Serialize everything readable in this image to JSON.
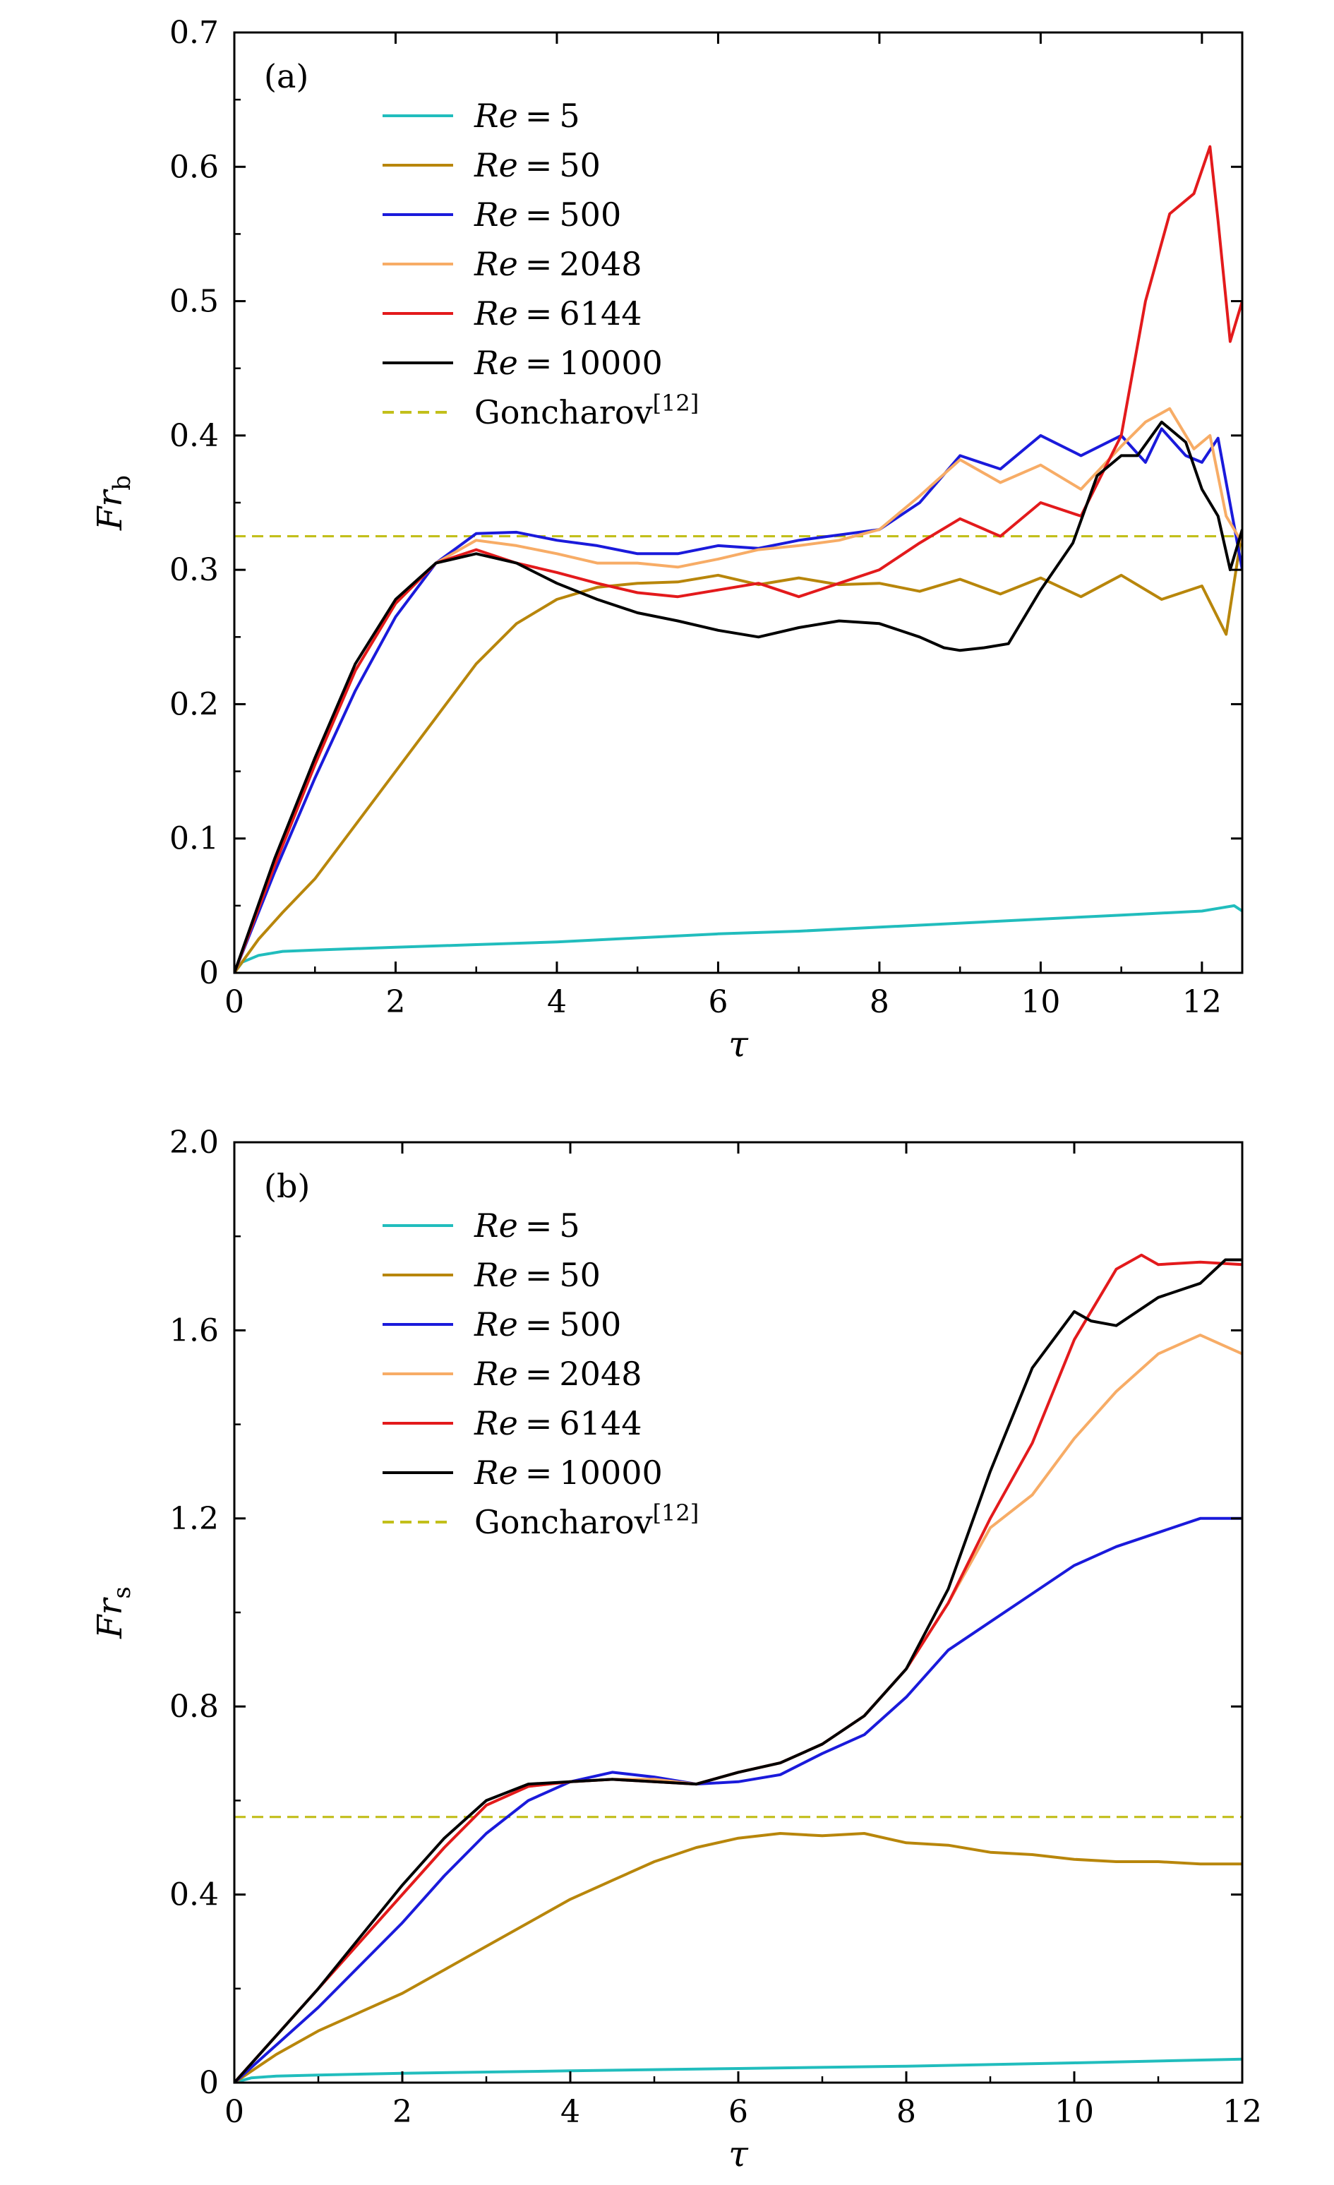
{
  "chart_data": [
    {
      "panel_label": "(a)",
      "type": "line",
      "xlabel": "τ",
      "ylabel_main": "Fr",
      "ylabel_sub": "b",
      "xlim": [
        0,
        12.5
      ],
      "ylim": [
        0,
        0.7
      ],
      "xticks": [
        0,
        2,
        4,
        6,
        8,
        10,
        12
      ],
      "xtick_labels": [
        "0",
        "2",
        "4",
        "6",
        "8",
        "10",
        "12"
      ],
      "yticks": [
        0,
        0.1,
        0.2,
        0.3,
        0.4,
        0.5,
        0.6,
        0.7
      ],
      "ytick_labels": [
        "0",
        "0.1",
        "0.2",
        "0.3",
        "0.4",
        "0.5",
        "0.6",
        "0.7"
      ],
      "legend_position": "top-left",
      "series": [
        {
          "name": "Re = 5",
          "re_value": "5",
          "color": "#21bdbd",
          "x": [
            0,
            0.1,
            0.3,
            0.6,
            1,
            2,
            3,
            4,
            5,
            6,
            7,
            8,
            9,
            10,
            11,
            12,
            12.2,
            12.4,
            12.5
          ],
          "y": [
            0,
            0.008,
            0.013,
            0.016,
            0.017,
            0.019,
            0.021,
            0.023,
            0.026,
            0.029,
            0.031,
            0.034,
            0.037,
            0.04,
            0.043,
            0.046,
            0.048,
            0.05,
            0.046
          ]
        },
        {
          "name": "Re = 50",
          "re_value": "50",
          "color": "#b8860b",
          "x": [
            0,
            0.3,
            0.6,
            1,
            1.5,
            2,
            2.5,
            3,
            3.5,
            4,
            4.5,
            5,
            5.5,
            6,
            6.5,
            7,
            7.5,
            8,
            8.5,
            9,
            9.5,
            10,
            10.5,
            11,
            11.5,
            12,
            12.3,
            12.5
          ],
          "y": [
            0,
            0.025,
            0.045,
            0.07,
            0.11,
            0.15,
            0.19,
            0.23,
            0.26,
            0.278,
            0.287,
            0.29,
            0.291,
            0.296,
            0.289,
            0.294,
            0.289,
            0.29,
            0.284,
            0.293,
            0.282,
            0.294,
            0.28,
            0.296,
            0.278,
            0.288,
            0.252,
            0.33
          ]
        },
        {
          "name": "Re = 500",
          "re_value": "500",
          "color": "#1a1adb",
          "x": [
            0,
            0.5,
            1,
            1.5,
            2,
            2.5,
            3,
            3.5,
            4,
            4.5,
            5,
            5.5,
            6,
            6.5,
            7,
            7.5,
            8,
            8.5,
            9,
            9.5,
            10,
            10.5,
            11,
            11.3,
            11.5,
            11.8,
            12,
            12.2,
            12.5
          ],
          "y": [
            0,
            0.075,
            0.145,
            0.21,
            0.265,
            0.305,
            0.327,
            0.328,
            0.322,
            0.318,
            0.312,
            0.312,
            0.318,
            0.316,
            0.322,
            0.326,
            0.33,
            0.35,
            0.385,
            0.375,
            0.4,
            0.385,
            0.4,
            0.38,
            0.405,
            0.385,
            0.38,
            0.398,
            0.3
          ]
        },
        {
          "name": "Re = 2048",
          "re_value": "2048",
          "color": "#f7ac66",
          "x": [
            0,
            0.5,
            1,
            1.5,
            2,
            2.5,
            3,
            3.5,
            4,
            4.5,
            5,
            5.5,
            6,
            6.5,
            7,
            7.5,
            8,
            8.5,
            9,
            9.5,
            10,
            10.5,
            11,
            11.3,
            11.6,
            11.9,
            12.1,
            12.3,
            12.5
          ],
          "y": [
            0,
            0.08,
            0.155,
            0.225,
            0.275,
            0.305,
            0.322,
            0.318,
            0.312,
            0.305,
            0.305,
            0.302,
            0.308,
            0.315,
            0.318,
            0.322,
            0.33,
            0.355,
            0.382,
            0.365,
            0.378,
            0.36,
            0.392,
            0.41,
            0.42,
            0.39,
            0.4,
            0.34,
            0.32
          ]
        },
        {
          "name": "Re = 6144",
          "re_value": "6144",
          "color": "#e31a1c",
          "x": [
            0,
            0.5,
            1,
            1.5,
            2,
            2.5,
            3,
            3.5,
            4,
            4.5,
            5,
            5.5,
            6,
            6.5,
            7,
            7.5,
            8,
            8.5,
            9,
            9.5,
            10,
            10.5,
            11,
            11.3,
            11.6,
            11.9,
            12.1,
            12.2,
            12.35,
            12.5
          ],
          "y": [
            0,
            0.08,
            0.155,
            0.225,
            0.275,
            0.305,
            0.315,
            0.305,
            0.298,
            0.29,
            0.283,
            0.28,
            0.285,
            0.29,
            0.28,
            0.29,
            0.3,
            0.32,
            0.338,
            0.325,
            0.35,
            0.34,
            0.4,
            0.5,
            0.565,
            0.58,
            0.615,
            0.56,
            0.47,
            0.5
          ]
        },
        {
          "name": "Re = 10000",
          "re_value": "10000",
          "color": "#000000",
          "x": [
            0,
            0.5,
            1,
            1.5,
            2,
            2.5,
            3,
            3.5,
            4,
            4.5,
            5,
            5.5,
            6,
            6.5,
            7,
            7.5,
            8,
            8.5,
            8.8,
            9,
            9.3,
            9.6,
            10,
            10.4,
            10.7,
            11,
            11.2,
            11.5,
            11.8,
            12,
            12.2,
            12.35,
            12.5
          ],
          "y": [
            0,
            0.085,
            0.16,
            0.23,
            0.278,
            0.305,
            0.312,
            0.305,
            0.29,
            0.278,
            0.268,
            0.262,
            0.255,
            0.25,
            0.257,
            0.262,
            0.26,
            0.25,
            0.242,
            0.24,
            0.242,
            0.245,
            0.285,
            0.32,
            0.37,
            0.385,
            0.385,
            0.41,
            0.395,
            0.36,
            0.34,
            0.3,
            0.33
          ]
        }
      ],
      "reference_line": {
        "label_main": "Goncharov",
        "label_sup": "[12]",
        "value": 0.325,
        "color": "#c2bf1b"
      }
    },
    {
      "panel_label": "(b)",
      "type": "line",
      "xlabel": "τ",
      "ylabel_main": "Fr",
      "ylabel_sub": "s",
      "xlim": [
        0,
        12
      ],
      "ylim": [
        0,
        2.0
      ],
      "xticks": [
        0,
        2,
        4,
        6,
        8,
        10,
        12
      ],
      "xtick_labels": [
        "0",
        "2",
        "4",
        "6",
        "8",
        "10",
        "12"
      ],
      "yticks": [
        0,
        0.4,
        0.8,
        1.2,
        1.6,
        2.0
      ],
      "ytick_labels": [
        "0",
        "0.4",
        "0.8",
        "1.2",
        "1.6",
        "2.0"
      ],
      "legend_position": "top-left",
      "series": [
        {
          "name": "Re = 5",
          "re_value": "5",
          "color": "#21bdbd",
          "x": [
            0,
            0.2,
            0.5,
            1,
            2,
            4,
            6,
            8,
            10,
            12
          ],
          "y": [
            0,
            0.01,
            0.014,
            0.016,
            0.02,
            0.025,
            0.03,
            0.035,
            0.042,
            0.05
          ]
        },
        {
          "name": "Re = 50",
          "re_value": "50",
          "color": "#b8860b",
          "x": [
            0,
            0.5,
            1,
            1.5,
            2,
            2.5,
            3,
            3.5,
            4,
            4.5,
            5,
            5.5,
            6,
            6.5,
            7,
            7.5,
            8,
            8.5,
            9,
            9.5,
            10,
            10.5,
            11,
            11.5,
            12
          ],
          "y": [
            0,
            0.06,
            0.11,
            0.15,
            0.19,
            0.24,
            0.29,
            0.34,
            0.39,
            0.43,
            0.47,
            0.5,
            0.52,
            0.53,
            0.525,
            0.53,
            0.51,
            0.505,
            0.49,
            0.485,
            0.475,
            0.47,
            0.47,
            0.465,
            0.465
          ]
        },
        {
          "name": "Re = 500",
          "re_value": "500",
          "color": "#1a1adb",
          "x": [
            0,
            0.5,
            1,
            1.5,
            2,
            2.5,
            3,
            3.5,
            4,
            4.5,
            5,
            5.5,
            6,
            6.5,
            7,
            7.5,
            8,
            8.5,
            9,
            9.5,
            10,
            10.5,
            11,
            11.5,
            12
          ],
          "y": [
            0,
            0.08,
            0.16,
            0.25,
            0.34,
            0.44,
            0.53,
            0.6,
            0.64,
            0.66,
            0.65,
            0.635,
            0.64,
            0.655,
            0.7,
            0.74,
            0.82,
            0.92,
            0.98,
            1.04,
            1.1,
            1.14,
            1.17,
            1.2,
            1.2
          ]
        },
        {
          "name": "Re = 2048",
          "re_value": "2048",
          "color": "#f7ac66",
          "x": [
            0,
            0.5,
            1,
            1.5,
            2,
            2.5,
            3,
            3.5,
            4,
            4.5,
            5,
            5.5,
            6,
            6.5,
            7,
            7.5,
            8,
            8.5,
            9,
            9.5,
            10,
            10.5,
            11,
            11.5,
            12
          ],
          "y": [
            0,
            0.1,
            0.2,
            0.3,
            0.4,
            0.5,
            0.59,
            0.63,
            0.64,
            0.645,
            0.645,
            0.635,
            0.66,
            0.68,
            0.72,
            0.78,
            0.88,
            1.02,
            1.18,
            1.25,
            1.37,
            1.47,
            1.55,
            1.59,
            1.55
          ]
        },
        {
          "name": "Re = 6144",
          "re_value": "6144",
          "color": "#e31a1c",
          "x": [
            0,
            0.5,
            1,
            1.5,
            2,
            2.5,
            3,
            3.5,
            4,
            4.5,
            5,
            5.5,
            6,
            6.5,
            7,
            7.5,
            8,
            8.5,
            9,
            9.5,
            10,
            10.5,
            10.8,
            11,
            11.5,
            12
          ],
          "y": [
            0,
            0.1,
            0.2,
            0.3,
            0.4,
            0.5,
            0.59,
            0.63,
            0.64,
            0.645,
            0.64,
            0.635,
            0.66,
            0.68,
            0.72,
            0.78,
            0.88,
            1.02,
            1.2,
            1.36,
            1.58,
            1.73,
            1.76,
            1.74,
            1.745,
            1.74
          ]
        },
        {
          "name": "Re = 10000",
          "re_value": "10000",
          "color": "#000000",
          "x": [
            0,
            0.5,
            1,
            1.5,
            2,
            2.5,
            3,
            3.5,
            4,
            4.5,
            5,
            5.5,
            6,
            6.5,
            7,
            7.5,
            8,
            8.5,
            9,
            9.5,
            10,
            10.2,
            10.5,
            11,
            11.5,
            11.8,
            12
          ],
          "y": [
            0,
            0.1,
            0.2,
            0.31,
            0.42,
            0.52,
            0.6,
            0.635,
            0.64,
            0.645,
            0.64,
            0.635,
            0.66,
            0.68,
            0.72,
            0.78,
            0.88,
            1.05,
            1.3,
            1.52,
            1.64,
            1.62,
            1.61,
            1.67,
            1.7,
            1.75,
            1.75
          ]
        }
      ],
      "reference_line": {
        "label_main": "Goncharov",
        "label_sup": "[12]",
        "value": 0.565,
        "color": "#c2bf1b"
      }
    }
  ]
}
